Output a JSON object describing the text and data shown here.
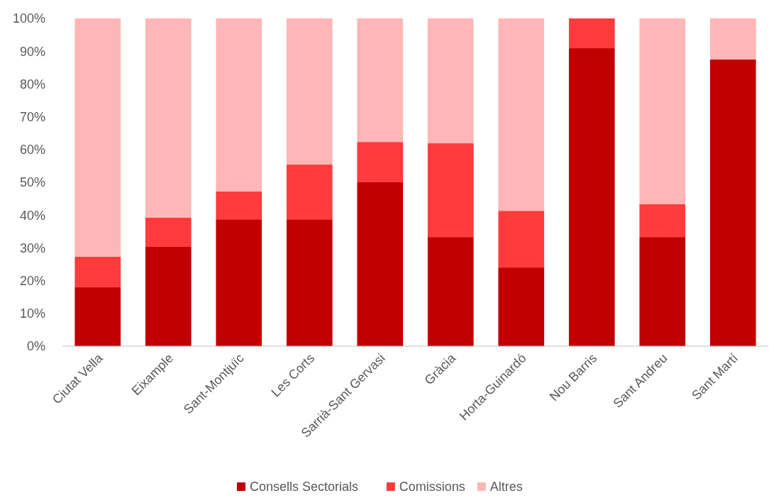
{
  "chart_data": {
    "type": "bar",
    "stacked": true,
    "categories": [
      "Ciutat Vella",
      "Eixample",
      "Sant-Montjuïc",
      "Les Corts",
      "Sarrià-Sant Gervasi",
      "Gràcia",
      "Horta-Guinardó",
      "Nou Barris",
      "Sant Andreu",
      "Sant Martí"
    ],
    "series": [
      {
        "name": "Consells Sectorials",
        "color": "#c00000",
        "values": [
          18.0,
          30.3,
          38.7,
          38.7,
          50.0,
          33.3,
          24.0,
          90.9,
          33.3,
          87.5
        ]
      },
      {
        "name": "Comissions",
        "color": "#ff3b3b",
        "values": [
          9.3,
          8.9,
          8.5,
          16.7,
          12.3,
          28.6,
          17.3,
          9.1,
          10.0,
          0
        ]
      },
      {
        "name": "Altres",
        "color": "#ffb6b6",
        "values": [
          72.7,
          60.8,
          52.8,
          44.6,
          37.7,
          38.1,
          58.7,
          0,
          56.7,
          12.5
        ]
      }
    ],
    "ylim": [
      0,
      100
    ],
    "yticks": [
      {
        "value": 0,
        "label": "0%"
      },
      {
        "value": 10,
        "label": "10%"
      },
      {
        "value": 20,
        "label": "20%"
      },
      {
        "value": 30,
        "label": "30%"
      },
      {
        "value": 40,
        "label": "40%"
      },
      {
        "value": 50,
        "label": "50%"
      },
      {
        "value": 60,
        "label": "60%"
      },
      {
        "value": 70,
        "label": "70%"
      },
      {
        "value": 80,
        "label": "80%"
      },
      {
        "value": 90,
        "label": "90%"
      },
      {
        "value": 100,
        "label": "100%"
      }
    ],
    "grid": false,
    "legend": "bottom"
  }
}
